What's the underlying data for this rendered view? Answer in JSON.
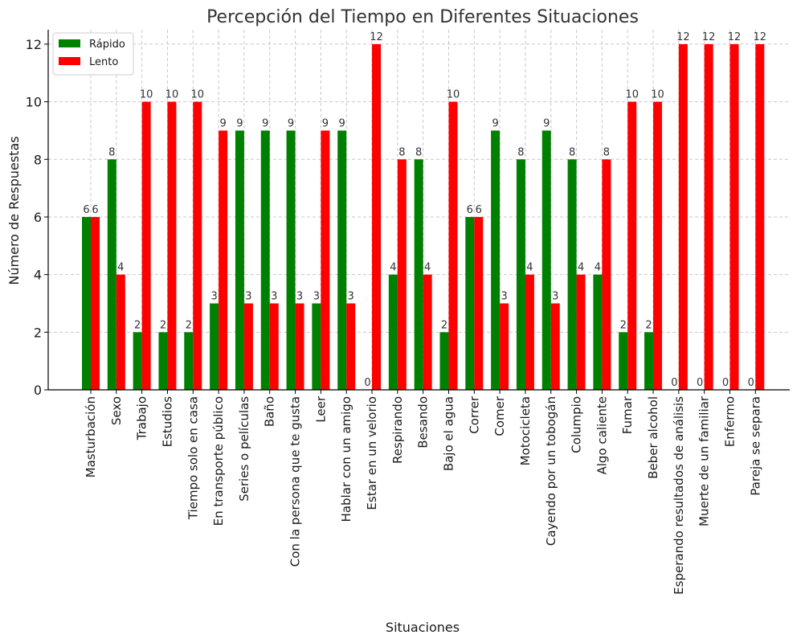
{
  "chart_data": {
    "type": "bar",
    "title": "Percepción del Tiempo en Diferentes Situaciones",
    "xlabel": "Situaciones",
    "ylabel": "Número de Respuestas",
    "ylim": [
      0,
      12.5
    ],
    "yticks": [
      0,
      2,
      4,
      6,
      8,
      10,
      12
    ],
    "grid": true,
    "legend_position": "top-left",
    "categories": [
      "Masturbación",
      "Sexo",
      "Trabajo",
      "Estudios",
      "Tiempo solo en casa",
      "En transporte público",
      "Series o películas",
      "Baño",
      "Con la persona que te gusta",
      "Leer",
      "Hablar con un amigo",
      "Estar en un velorio",
      "Respirando",
      "Besando",
      "Bajo el agua",
      "Correr",
      "Comer",
      "Motocicleta",
      "Cayendo por un tobogán",
      "Columpio",
      "Algo caliente",
      "Fumar",
      "Beber alcohol",
      "Esperando resultados de análisis",
      "Muerte de un familiar",
      "Enfermo",
      "Pareja se separa"
    ],
    "series": [
      {
        "name": "Rápido",
        "color": "#008000",
        "values": [
          6,
          8,
          2,
          2,
          2,
          3,
          9,
          9,
          9,
          3,
          9,
          0,
          4,
          8,
          2,
          6,
          9,
          8,
          9,
          8,
          4,
          2,
          2,
          0,
          0,
          0,
          0
        ]
      },
      {
        "name": "Lento",
        "color": "#ff0000",
        "values": [
          6,
          4,
          10,
          10,
          10,
          9,
          3,
          3,
          3,
          9,
          3,
          12,
          8,
          4,
          10,
          6,
          3,
          4,
          3,
          4,
          8,
          10,
          10,
          12,
          12,
          12,
          12
        ]
      }
    ]
  }
}
